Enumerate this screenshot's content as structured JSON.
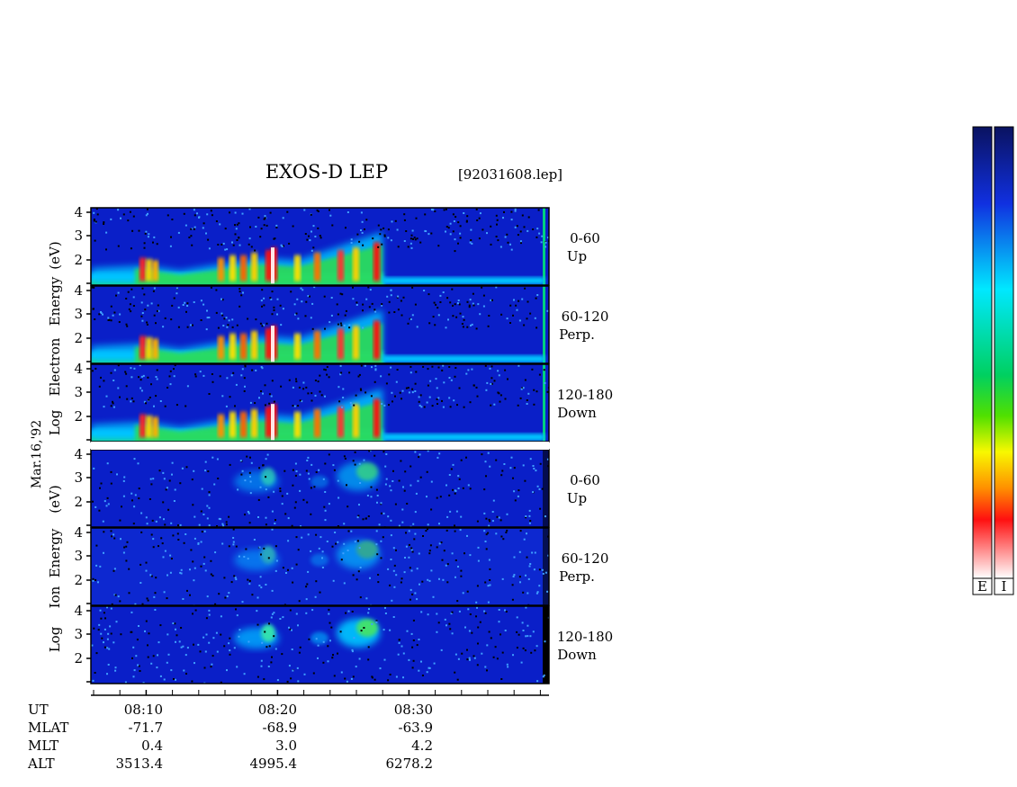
{
  "header": {
    "title": "EXOS-D LEP",
    "file": "[92031608.lep]"
  },
  "date_label": "Mar.16,'92",
  "y_label": {
    "electron": [
      "Log",
      "Electron",
      "Energy",
      "(eV)"
    ],
    "ion": [
      "Log",
      "Ion",
      "Energy",
      "(eV)"
    ]
  },
  "pitch_labels": [
    {
      "range": "0-60",
      "dir": "Up"
    },
    {
      "range": "60-120",
      "dir": "Perp."
    },
    {
      "range": "120-180",
      "dir": "Down"
    },
    {
      "range": "0-60",
      "dir": "Up"
    },
    {
      "range": "60-120",
      "dir": "Perp."
    },
    {
      "range": "120-180",
      "dir": "Down"
    }
  ],
  "colorbar_labels": [
    "E",
    "I"
  ],
  "colors": {
    "background": "#0a1fc8",
    "colorbar": [
      "#0a1260",
      "#1030e0",
      "#00c8ff",
      "#00e070",
      "#40e000",
      "#f0f000",
      "#ff8000",
      "#ff1010",
      "#ffffff"
    ]
  },
  "chart_data": {
    "type": "heatmap",
    "title": "EXOS-D LEP",
    "panels": [
      {
        "species": "Electron",
        "pitch": "0-60",
        "dir": "Up"
      },
      {
        "species": "Electron",
        "pitch": "60-120",
        "dir": "Perp."
      },
      {
        "species": "Electron",
        "pitch": "120-180",
        "dir": "Down"
      },
      {
        "species": "Ion",
        "pitch": "0-60",
        "dir": "Up"
      },
      {
        "species": "Ion",
        "pitch": "60-120",
        "dir": "Perp."
      },
      {
        "species": "Ion",
        "pitch": "120-180",
        "dir": "Down"
      }
    ],
    "y_ticks": [
      "4",
      "3",
      "2"
    ],
    "ylim_log_eV": [
      1,
      4
    ],
    "ut_range_min": [
      485,
      520
    ],
    "x_ticks": [
      {
        "ut": "08:10",
        "mlat": "-71.7",
        "mlt": "0.4",
        "alt": "3513.4"
      },
      {
        "ut": "08:20",
        "mlat": "-68.9",
        "mlt": "3.0",
        "alt": "4995.4"
      },
      {
        "ut": "08:30",
        "mlat": "-63.9",
        "mlt": "4.2",
        "alt": "6278.2"
      }
    ],
    "row_labels": [
      "UT",
      "MLAT",
      "MLT",
      "ALT"
    ]
  }
}
